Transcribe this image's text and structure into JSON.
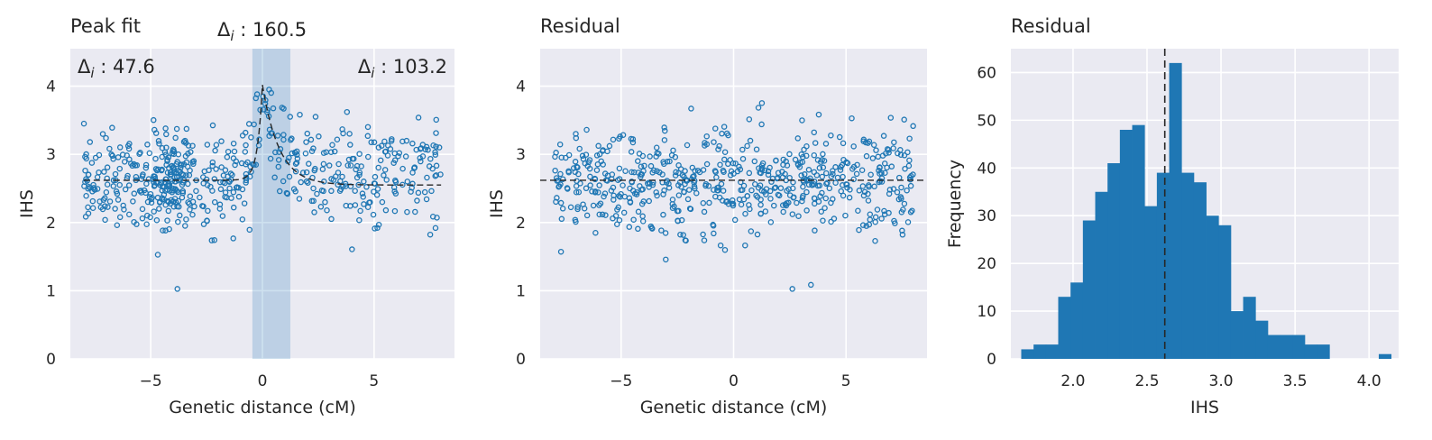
{
  "colors": {
    "background": "#ffffff",
    "axes_face": "#eaeaf2",
    "grid": "#ffffff",
    "scatter_edge": "#1f77b4",
    "bar_fill": "#1f77b4",
    "shade": "#1f77b4",
    "dashed_line": "#262626"
  },
  "chart_data": [
    {
      "type": "scatter",
      "title": "Peak fit",
      "xlabel": "Genetic distance (cM)",
      "ylabel": "IHS",
      "xlim": [
        -8.6,
        8.6
      ],
      "ylim": [
        0,
        4.55
      ],
      "xticks": [
        -5,
        0,
        5
      ],
      "xtick_labels": [
        "−5",
        "0",
        "5"
      ],
      "yticks": [
        0,
        1,
        2,
        3,
        4
      ],
      "ytick_labels": [
        "0",
        "1",
        "2",
        "3",
        "4"
      ],
      "grid": true,
      "points": {
        "x_range": [
          -8,
          8
        ],
        "n": 600,
        "baseline": 2.62,
        "sd": 0.38,
        "dense_region": [
          -5,
          -3.2
        ]
      },
      "fit_curve": {
        "baseline": 2.62,
        "peak_x": 0.0,
        "peak_y": 4.02,
        "right_baseline": 2.55,
        "style": "dashed"
      },
      "shaded_span": [
        -0.45,
        1.25
      ],
      "annotations": [
        {
          "label": "Δ",
          "sub": "i",
          "value": " : 47.6",
          "position": "top-left-inside"
        },
        {
          "label": "Δ",
          "sub": "i",
          "value": " : 160.5",
          "position": "above-plot-center"
        },
        {
          "label": "Δ",
          "sub": "i",
          "value": " : 103.2",
          "position": "top-right-inside"
        }
      ]
    },
    {
      "type": "scatter",
      "title": "Residual",
      "xlabel": "Genetic distance (cM)",
      "ylabel": "IHS",
      "xlim": [
        -8.6,
        8.6
      ],
      "ylim": [
        0,
        4.55
      ],
      "xticks": [
        -5,
        0,
        5
      ],
      "xtick_labels": [
        "−5",
        "0",
        "5"
      ],
      "yticks": [
        0,
        1,
        2,
        3,
        4
      ],
      "ytick_labels": [
        "0",
        "1",
        "2",
        "3",
        "4"
      ],
      "grid": true,
      "points": {
        "x_range": [
          -8,
          8
        ],
        "n": 600,
        "baseline": 2.62,
        "sd": 0.38
      },
      "hline": {
        "y": 2.62,
        "style": "dashed"
      }
    },
    {
      "type": "bar",
      "title": "Residual",
      "xlabel": "IHS",
      "ylabel": "Frequency",
      "xlim": [
        1.58,
        4.2
      ],
      "ylim": [
        0,
        65
      ],
      "xticks": [
        2.0,
        2.5,
        3.0,
        3.5,
        4.0
      ],
      "xtick_labels": [
        "2.0",
        "2.5",
        "3.0",
        "3.5",
        "4.0"
      ],
      "yticks": [
        0,
        10,
        20,
        30,
        40,
        50,
        60
      ],
      "ytick_labels": [
        "0",
        "10",
        "20",
        "30",
        "40",
        "50",
        "60"
      ],
      "grid": true,
      "bin_start": 1.65,
      "bin_width": 0.0833,
      "values": [
        2,
        3,
        3,
        13,
        16,
        29,
        35,
        41,
        48,
        49,
        32,
        39,
        62,
        39,
        37,
        30,
        28,
        10,
        13,
        8,
        5,
        5,
        5,
        3,
        3,
        0,
        0,
        0,
        0,
        1
      ],
      "vline": {
        "x": 2.62,
        "style": "dashed"
      }
    }
  ]
}
